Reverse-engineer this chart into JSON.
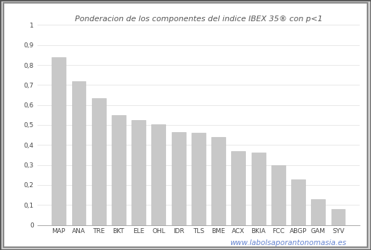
{
  "title": "Ponderacion de los componentes del indice IBEX 35® con p<1",
  "categories": [
    "MAP",
    "ANA",
    "TRE",
    "BKT",
    "ELE",
    "OHL",
    "IDR",
    "TLS",
    "BME",
    "ACX",
    "BKIA",
    "FCC",
    "ABGP",
    "GAM",
    "SYV"
  ],
  "values": [
    0.84,
    0.72,
    0.635,
    0.55,
    0.525,
    0.505,
    0.465,
    0.462,
    0.44,
    0.37,
    0.362,
    0.297,
    0.228,
    0.13,
    0.08
  ],
  "bar_color": "#c8c8c8",
  "bar_edge_color": "#b8b8b8",
  "background_color": "#ffffff",
  "outer_bg": "#e0e0e0",
  "ylim": [
    0,
    1.0
  ],
  "yticks": [
    0,
    0.1,
    0.2,
    0.3,
    0.4,
    0.5,
    0.6,
    0.7,
    0.8,
    0.9,
    1
  ],
  "ytick_labels": [
    "0",
    "0,1",
    "0,2",
    "0,3",
    "0,4",
    "0,5",
    "0,6",
    "0,7",
    "0,8",
    "0,9",
    "1"
  ],
  "title_fontsize": 8,
  "tick_fontsize": 6.5,
  "watermark": "www.labolsaporantonomasia.es",
  "watermark_color": "#5577cc",
  "grid_color": "#e8e8e8",
  "border_color": "#555555"
}
